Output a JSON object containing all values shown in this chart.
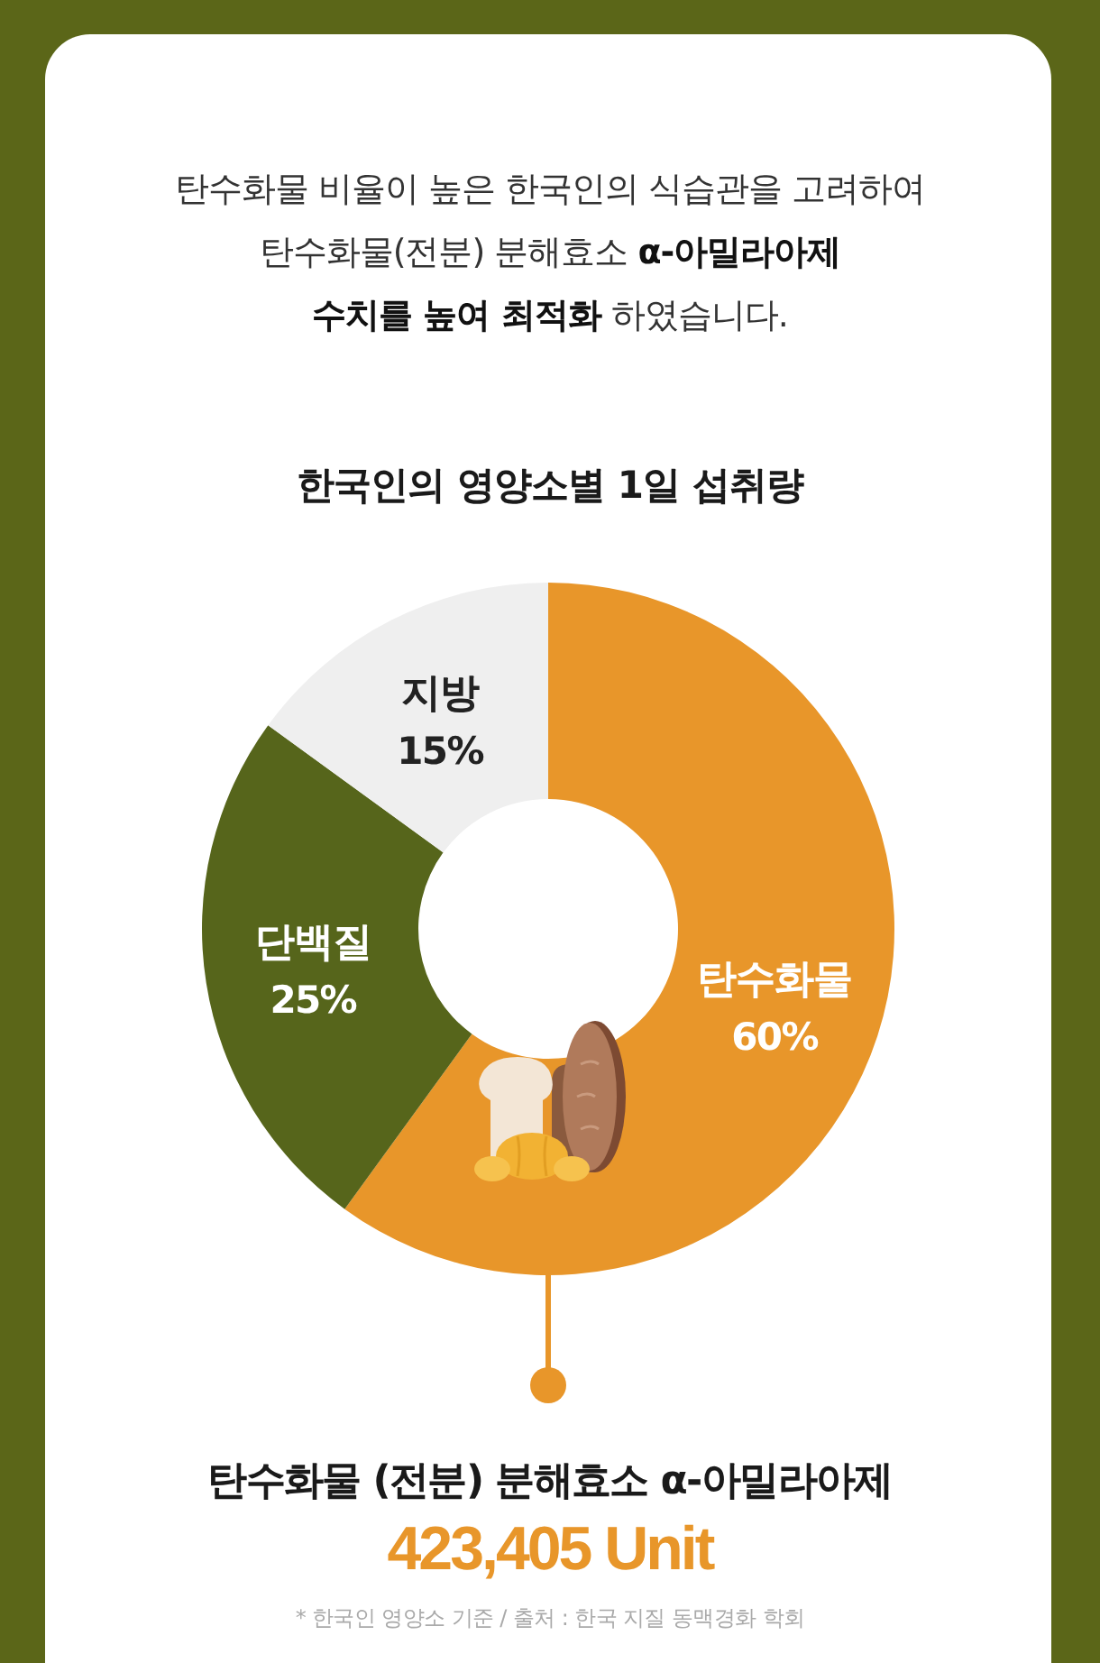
{
  "chart_data": {
    "type": "donut",
    "title": "한국인의 영양소별 1일 섭취량",
    "categories": [
      "탄수화물",
      "단백질",
      "지방"
    ],
    "values": [
      60,
      25,
      15
    ],
    "colors": [
      "#e8962a",
      "#56651b",
      "#efefef"
    ],
    "value_labels": [
      "60%",
      "25%",
      "15%"
    ],
    "annotations": [
      "탄수화물 비율이 높은 한국인의 식습관을 고려하여\n탄수화물(전분) 분해효소 **α-아밀라아제**\n**수치를 높여 최적화** 하였습니다.",
      "탄수화물 (전분) 분해효소 α-아밀라아제",
      "423,405 Unit",
      "* 한국인 영양소 기준 / 출처 : 한국 지질 동맥경화 학회"
    ]
  }
}
